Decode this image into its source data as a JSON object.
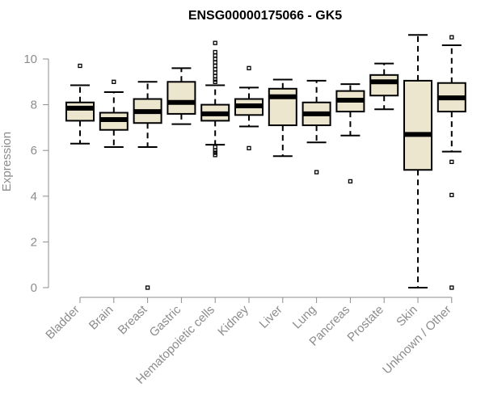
{
  "chart_data": {
    "type": "boxplot",
    "title": "ENSG00000175066 - GK5",
    "xlabel": "",
    "ylabel": "Expression",
    "ylim": [
      0,
      11
    ],
    "yticks": [
      0,
      2,
      4,
      6,
      8,
      10
    ],
    "box_fill": "#ede6cf",
    "box_stroke": "#000000",
    "axis_color": "#8c8c8c",
    "categories": [
      "Bladder",
      "Brain",
      "Breast",
      "Gastric",
      "Hematopoietic cells",
      "Kidney",
      "Liver",
      "Lung",
      "Pancreas",
      "Prostate",
      "Skin",
      "Unknown / Other"
    ],
    "boxes": [
      {
        "category": "Bladder",
        "q1": 7.3,
        "median": 7.85,
        "q3": 8.1,
        "whisker_low": 6.3,
        "whisker_high": 8.85,
        "outliers": [
          9.7
        ]
      },
      {
        "category": "Brain",
        "q1": 6.9,
        "median": 7.35,
        "q3": 7.65,
        "whisker_low": 6.15,
        "whisker_high": 8.55,
        "outliers": [
          9.0
        ]
      },
      {
        "category": "Breast",
        "q1": 7.2,
        "median": 7.7,
        "q3": 8.25,
        "whisker_low": 6.15,
        "whisker_high": 9.0,
        "outliers": [
          0.0
        ]
      },
      {
        "category": "Gastric",
        "q1": 7.6,
        "median": 8.1,
        "q3": 9.0,
        "whisker_low": 7.15,
        "whisker_high": 9.6,
        "outliers": []
      },
      {
        "category": "Hematopoietic cells",
        "q1": 7.3,
        "median": 7.6,
        "q3": 8.0,
        "whisker_low": 6.25,
        "whisker_high": 8.85,
        "outliers": [
          10.7,
          10.3,
          10.15,
          10.0,
          9.85,
          9.7,
          9.55,
          9.4,
          9.25,
          9.1,
          9.0,
          6.15,
          6.0,
          5.9,
          5.8
        ]
      },
      {
        "category": "Kidney",
        "q1": 7.55,
        "median": 7.95,
        "q3": 8.25,
        "whisker_low": 7.05,
        "whisker_high": 8.75,
        "outliers": [
          9.6,
          6.1
        ]
      },
      {
        "category": "Liver",
        "q1": 7.1,
        "median": 8.35,
        "q3": 8.7,
        "whisker_low": 5.75,
        "whisker_high": 9.1,
        "outliers": []
      },
      {
        "category": "Lung",
        "q1": 7.1,
        "median": 7.6,
        "q3": 8.1,
        "whisker_low": 6.35,
        "whisker_high": 9.05,
        "outliers": [
          5.05
        ]
      },
      {
        "category": "Pancreas",
        "q1": 7.7,
        "median": 8.2,
        "q3": 8.6,
        "whisker_low": 6.65,
        "whisker_high": 8.9,
        "outliers": [
          4.65
        ]
      },
      {
        "category": "Prostate",
        "q1": 8.4,
        "median": 9.0,
        "q3": 9.3,
        "whisker_low": 7.8,
        "whisker_high": 9.8,
        "outliers": []
      },
      {
        "category": "Skin",
        "q1": 5.15,
        "median": 6.7,
        "q3": 9.05,
        "whisker_low": 0.0,
        "whisker_high": 11.05,
        "outliers": []
      },
      {
        "category": "Unknown / Other",
        "q1": 7.7,
        "median": 8.3,
        "q3": 8.95,
        "whisker_low": 5.95,
        "whisker_high": 10.6,
        "outliers": [
          10.95,
          5.5,
          4.05,
          0.0
        ]
      }
    ]
  }
}
